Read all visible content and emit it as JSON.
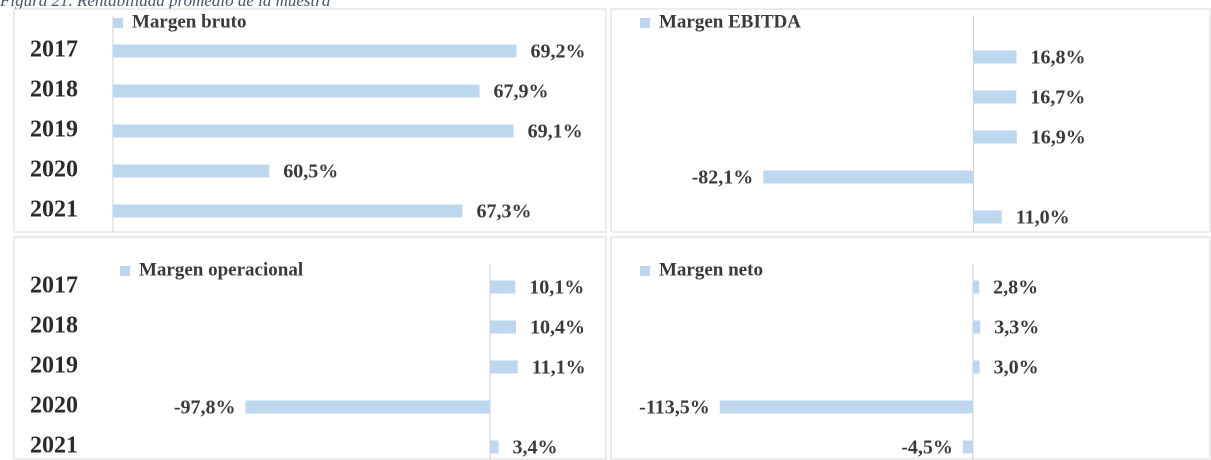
{
  "caption": "Figura 21. Rentabilidad promedio de la muestra",
  "chart_data": [
    {
      "type": "bar",
      "orientation": "horizontal",
      "categories": [
        "2017",
        "2018",
        "2019",
        "2020",
        "2021"
      ],
      "xlim": [
        55,
        72
      ],
      "series": [
        {
          "name": "Margen bruto",
          "color": "#bdd7ee",
          "values": [
            69.2,
            67.9,
            69.1,
            60.5,
            67.3
          ],
          "value_labels": [
            "69,2%",
            "67,9%",
            "69,1%",
            "60,5%",
            "67,3%"
          ]
        }
      ]
    },
    {
      "type": "bar",
      "orientation": "horizontal",
      "xlim": [
        -140,
        90
      ],
      "series": [
        {
          "name": "Margen EBITDA",
          "color": "#bdd7ee",
          "values": [
            16.8,
            16.7,
            16.9,
            -82.1,
            11.0
          ],
          "value_labels": [
            "16,8%",
            "16,7%",
            "16,9%",
            "-82,1%",
            "11,0%"
          ]
        }
      ]
    },
    {
      "type": "bar",
      "orientation": "horizontal",
      "categories": [
        "2017",
        "2018",
        "2019",
        "2020",
        "2021"
      ],
      "xlim": [
        -150,
        40
      ],
      "series": [
        {
          "name": "Margen operacional",
          "color": "#bdd7ee",
          "values": [
            10.1,
            10.4,
            11.1,
            -97.8,
            3.4
          ],
          "value_labels": [
            "10,1%",
            "10,4%",
            "11,1%",
            "-97,8%",
            "3,4%"
          ]
        }
      ]
    },
    {
      "type": "bar",
      "orientation": "horizontal",
      "xlim": [
        -160,
        100
      ],
      "series": [
        {
          "name": "Margen neto",
          "color": "#bdd7ee",
          "values": [
            2.8,
            3.3,
            3.0,
            -113.5,
            -4.5
          ],
          "value_labels": [
            "2,8%",
            "3,3%",
            "3,0%",
            "-113,5%",
            "-4,5%"
          ]
        }
      ]
    }
  ]
}
